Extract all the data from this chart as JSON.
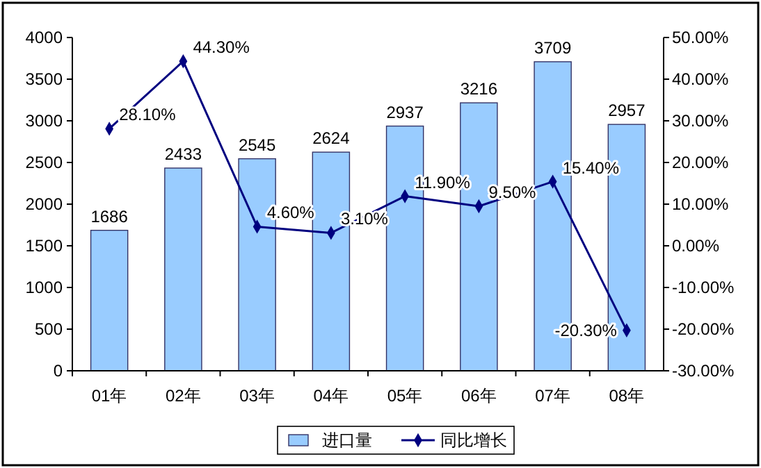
{
  "chart_data": {
    "type": "bar",
    "categories": [
      "01年",
      "02年",
      "03年",
      "04年",
      "05年",
      "06年",
      "07年",
      "08年"
    ],
    "series": [
      {
        "name": "进口量",
        "color": "#99ccff",
        "values": [
          1686,
          2433,
          2545,
          2624,
          2937,
          3216,
          3709,
          2957
        ],
        "value_labels": [
          "1686",
          "2433",
          "2545",
          "2624",
          "2937",
          "3216",
          "3709",
          "2957"
        ]
      },
      {
        "name": "同比增长",
        "type": "line",
        "axis": "y2",
        "color": "#000080",
        "marker": "diamond",
        "values": [
          28.1,
          44.3,
          4.6,
          3.1,
          11.9,
          9.5,
          15.4,
          -20.3
        ],
        "value_labels": [
          "28.10%",
          "44.30%",
          "4.60%",
          "3.10%",
          "11.90%",
          "9.50%",
          "15.40%",
          "-20.30%"
        ]
      }
    ],
    "ylim": [
      0,
      4000
    ],
    "yticks": [
      0,
      500,
      1000,
      1500,
      2000,
      2500,
      3000,
      3500,
      4000
    ],
    "y2lim": [
      -30,
      50
    ],
    "y2ticks": [
      {
        "value": -30,
        "label": "-30.00%"
      },
      {
        "value": -20,
        "label": "-20.00%"
      },
      {
        "value": -10,
        "label": "-10.00%"
      },
      {
        "value": 0,
        "label": "0.00%"
      },
      {
        "value": 10,
        "label": "10.00%"
      },
      {
        "value": 20,
        "label": "20.00%"
      },
      {
        "value": 30,
        "label": "30.00%"
      },
      {
        "value": 40,
        "label": "40.00%"
      },
      {
        "value": 50,
        "label": "50.00%"
      }
    ],
    "legend": "bottom",
    "grid": false
  }
}
